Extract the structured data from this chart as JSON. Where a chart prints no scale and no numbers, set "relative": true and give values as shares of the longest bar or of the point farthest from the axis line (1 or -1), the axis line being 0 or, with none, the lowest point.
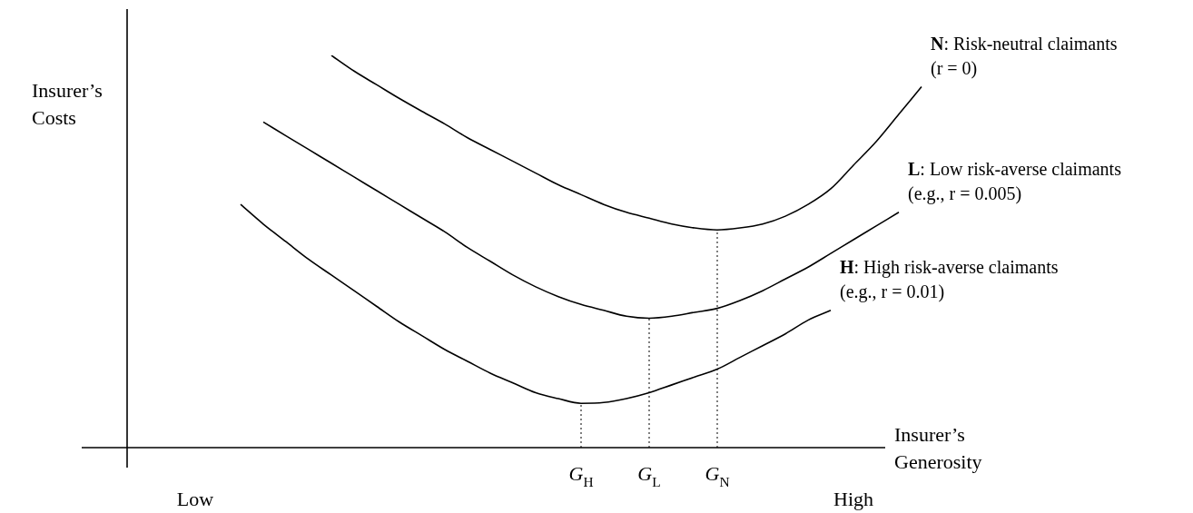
{
  "chart_data": {
    "type": "line",
    "relative": true,
    "xlabel": "Insurer’s Generosity",
    "ylabel": "Insurer’s Costs",
    "legend": false,
    "marker": "none",
    "line_style": "solid",
    "categories": [
      null,
      null,
      null,
      "Low",
      null,
      null,
      null,
      null,
      null,
      null,
      null,
      null,
      null,
      null,
      null,
      null,
      null,
      null,
      null,
      null,
      "G$_{H}$",
      null,
      null,
      "G$_{L}$",
      null,
      null,
      "G$_{N}$",
      null,
      null,
      null,
      null,
      null,
      "High",
      null,
      null,
      null,
      null
    ],
    "series": [
      {
        "name": "N: Risk-neutral claimants (r = 0)",
        "color": "#000000",
        "values": [
          null,
          null,
          null,
          null,
          null,
          null,
          null,
          null,
          null,
          1.0,
          0.96,
          0.925,
          0.89,
          0.857,
          0.825,
          0.79,
          0.76,
          0.73,
          0.7,
          0.67,
          0.645,
          0.62,
          0.6,
          0.585,
          0.57,
          0.56,
          0.555,
          0.56,
          0.57,
          0.59,
          0.62,
          0.66,
          0.72,
          0.78,
          0.85,
          0.92,
          null
        ]
      },
      {
        "name": "L: Low risk-averse claimants (e.g., r = 0.005)",
        "color": "#000000",
        "values": [
          null,
          null,
          null,
          null,
          null,
          null,
          0.83,
          0.795,
          0.76,
          0.725,
          0.69,
          0.655,
          0.62,
          0.585,
          0.55,
          0.51,
          0.475,
          0.44,
          0.41,
          0.385,
          0.365,
          0.35,
          0.335,
          0.33,
          0.335,
          0.345,
          0.355,
          0.375,
          0.4,
          0.43,
          0.46,
          0.495,
          0.53,
          0.565,
          0.6,
          null,
          null
        ]
      },
      {
        "name": "H: High risk-averse claimants (e.g., r = 0.01)",
        "color": "#000000",
        "values": [
          null,
          null,
          null,
          null,
          null,
          0.62,
          0.57,
          0.525,
          0.48,
          0.44,
          0.4,
          0.36,
          0.32,
          0.285,
          0.25,
          0.22,
          0.19,
          0.165,
          0.14,
          0.125,
          0.113,
          0.115,
          0.125,
          0.14,
          0.16,
          0.18,
          0.2,
          0.23,
          0.26,
          0.29,
          0.325,
          0.35,
          null,
          null,
          null,
          null,
          null
        ]
      }
    ],
    "ref_lines": [
      {
        "axis": "x",
        "value": "G$_{N}$",
        "line_style": "dotted"
      },
      {
        "axis": "x",
        "value": "G$_{L}$",
        "line_style": "dotted"
      },
      {
        "axis": "x",
        "value": "G$_{H}$",
        "line_style": "dotted"
      }
    ]
  }
}
